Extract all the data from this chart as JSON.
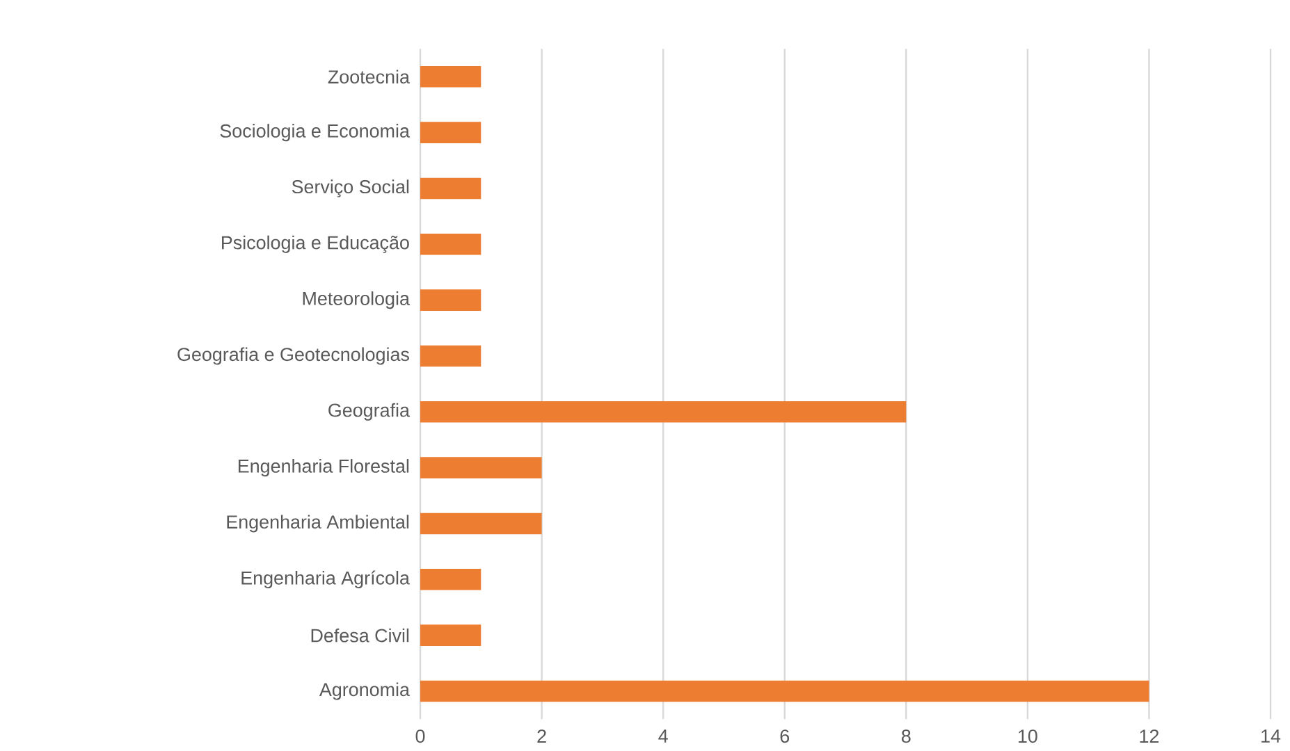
{
  "chart_data": {
    "type": "bar",
    "orientation": "horizontal",
    "categories": [
      "Zootecnia",
      "Sociologia e Economia",
      "Serviço Social",
      "Psicologia e Educação",
      "Meteorologia",
      "Geografia e Geotecnologias",
      "Geografia",
      "Engenharia Florestal",
      "Engenharia Ambiental",
      "Engenharia Agrícola",
      "Defesa Civil",
      "Agronomia"
    ],
    "values": [
      1,
      1,
      1,
      1,
      1,
      1,
      8,
      2,
      2,
      1,
      1,
      12
    ],
    "color": "#ed7d31",
    "xlim": [
      0,
      14
    ],
    "xticks": [
      0,
      2,
      4,
      6,
      8,
      10,
      12,
      14
    ],
    "grid": "x"
  }
}
